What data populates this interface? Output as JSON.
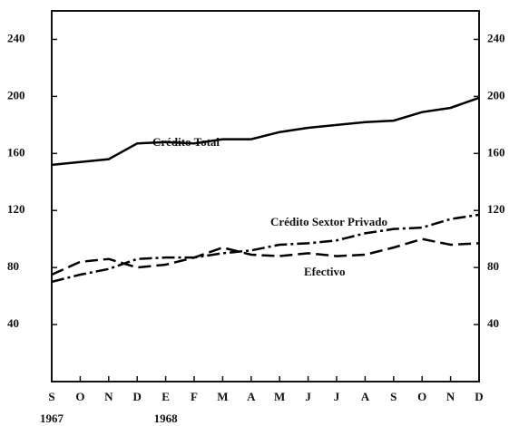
{
  "chart_data": {
    "type": "line",
    "categories": [
      "S",
      "O",
      "N",
      "D",
      "E",
      "F",
      "M",
      "A",
      "M",
      "J",
      "J",
      "A",
      "S",
      "O",
      "N",
      "D"
    ],
    "years": [
      "1967",
      null,
      null,
      null,
      "1968",
      null,
      null,
      null,
      null,
      null,
      null,
      null,
      null,
      null,
      null,
      null
    ],
    "series": [
      {
        "name": "Crédito Total",
        "color": "#000000",
        "style": "solid",
        "values": [
          152,
          154,
          156,
          167,
          168,
          167,
          170,
          170,
          175,
          178,
          180,
          182,
          183,
          189,
          192,
          199
        ]
      },
      {
        "name": "Crédito Sextor Privado",
        "color": "#000000",
        "style": "dashdot",
        "values": [
          70,
          75,
          79,
          86,
          87,
          87,
          90,
          92,
          96,
          97,
          99,
          104,
          107,
          108,
          114,
          117
        ]
      },
      {
        "name": "Efectivo",
        "color": "#000000",
        "style": "dashed",
        "values": [
          75,
          84,
          86,
          80,
          82,
          87,
          94,
          89,
          88,
          90,
          88,
          89,
          94,
          100,
          96,
          97
        ]
      }
    ],
    "annotations": [
      "Crédito Total",
      "Crédito Sextor Privado",
      "Efectivo"
    ],
    "ylim": [
      0,
      260
    ],
    "yticks": [
      40,
      80,
      120,
      160,
      200,
      240
    ],
    "grid": false
  }
}
